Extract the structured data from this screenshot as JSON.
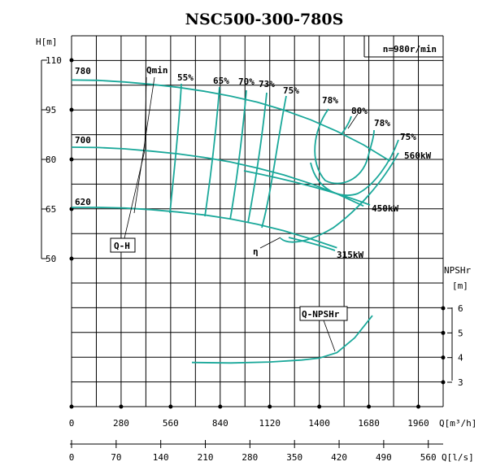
{
  "chart_data": {
    "type": "line",
    "title": "NSC500-300-780S",
    "speed_label": "n=980r/min",
    "y_head_label": "H[m]",
    "y_npsh_label": "NPSHr",
    "y_npsh_unit": "[m]",
    "x_flow_m3h_label": "Q[m³/h]",
    "x_flow_ls_label": "Q[l/s]",
    "x_m3h_ticks": [
      "0",
      "280",
      "560",
      "840",
      "1120",
      "1400",
      "1680",
      "1960"
    ],
    "x_m3h_values": [
      0,
      280,
      560,
      840,
      1120,
      1400,
      1680,
      1960
    ],
    "x_ls_ticks": [
      "0",
      "70",
      "140",
      "210",
      "280",
      "350",
      "420",
      "490",
      "560"
    ],
    "x_ls_values": [
      0,
      70,
      140,
      210,
      280,
      350,
      420,
      490,
      560
    ],
    "xlim_m3h": [
      0,
      2100
    ],
    "y_head_ticks": [
      "110",
      "95",
      "80",
      "65",
      "50"
    ],
    "y_head_values": [
      110,
      95,
      80,
      65,
      50
    ],
    "ylim_head": [
      20,
      115
    ],
    "y_npsh_ticks": [
      "6",
      "5",
      "4",
      "3"
    ],
    "y_npsh_values": [
      6,
      5,
      4,
      3
    ],
    "grid": true,
    "series": [
      {
        "name": "780",
        "kind": "head",
        "x": [
          0,
          150,
          300,
          450,
          600,
          750,
          900,
          1050,
          1200,
          1350,
          1500,
          1650,
          1800
        ],
        "y": [
          104,
          103.9,
          103.4,
          102.7,
          101.8,
          100.6,
          99.1,
          97.3,
          94.9,
          92,
          88.5,
          84.4,
          79.5
        ]
      },
      {
        "name": "700",
        "kind": "head",
        "x": [
          0,
          150,
          300,
          450,
          600,
          750,
          900,
          1050,
          1200,
          1350,
          1500,
          1650
        ],
        "y": [
          83.7,
          83.6,
          83.2,
          82.5,
          81.7,
          80.6,
          79.2,
          77.4,
          75.3,
          72.7,
          69.6,
          65.9
        ]
      },
      {
        "name": "620",
        "kind": "head",
        "x": [
          0,
          150,
          300,
          450,
          600,
          750,
          900,
          1050,
          1200,
          1350,
          1500
        ],
        "y": [
          65.5,
          65.5,
          65.3,
          64.8,
          64.1,
          63.2,
          62,
          60.4,
          58.4,
          56,
          53.3
        ]
      },
      {
        "name": "Q-NPSHr",
        "kind": "npsh",
        "x": [
          680,
          900,
          1120,
          1300,
          1400,
          1500,
          1600,
          1700
        ],
        "y": [
          3.8,
          3.78,
          3.82,
          3.9,
          3.98,
          4.2,
          4.8,
          5.7
        ]
      }
    ],
    "efficiency_labels": [
      "55%",
      "65%",
      "70%",
      "73%",
      "75%",
      "78%",
      "80%",
      "78%",
      "75%"
    ],
    "power_labels": [
      "560kW",
      "450kW",
      "315kW"
    ],
    "annotations": [
      "Qmin",
      "Q-H",
      "η",
      "Q-NPSHr"
    ],
    "curve_color": "#1aa89a"
  }
}
